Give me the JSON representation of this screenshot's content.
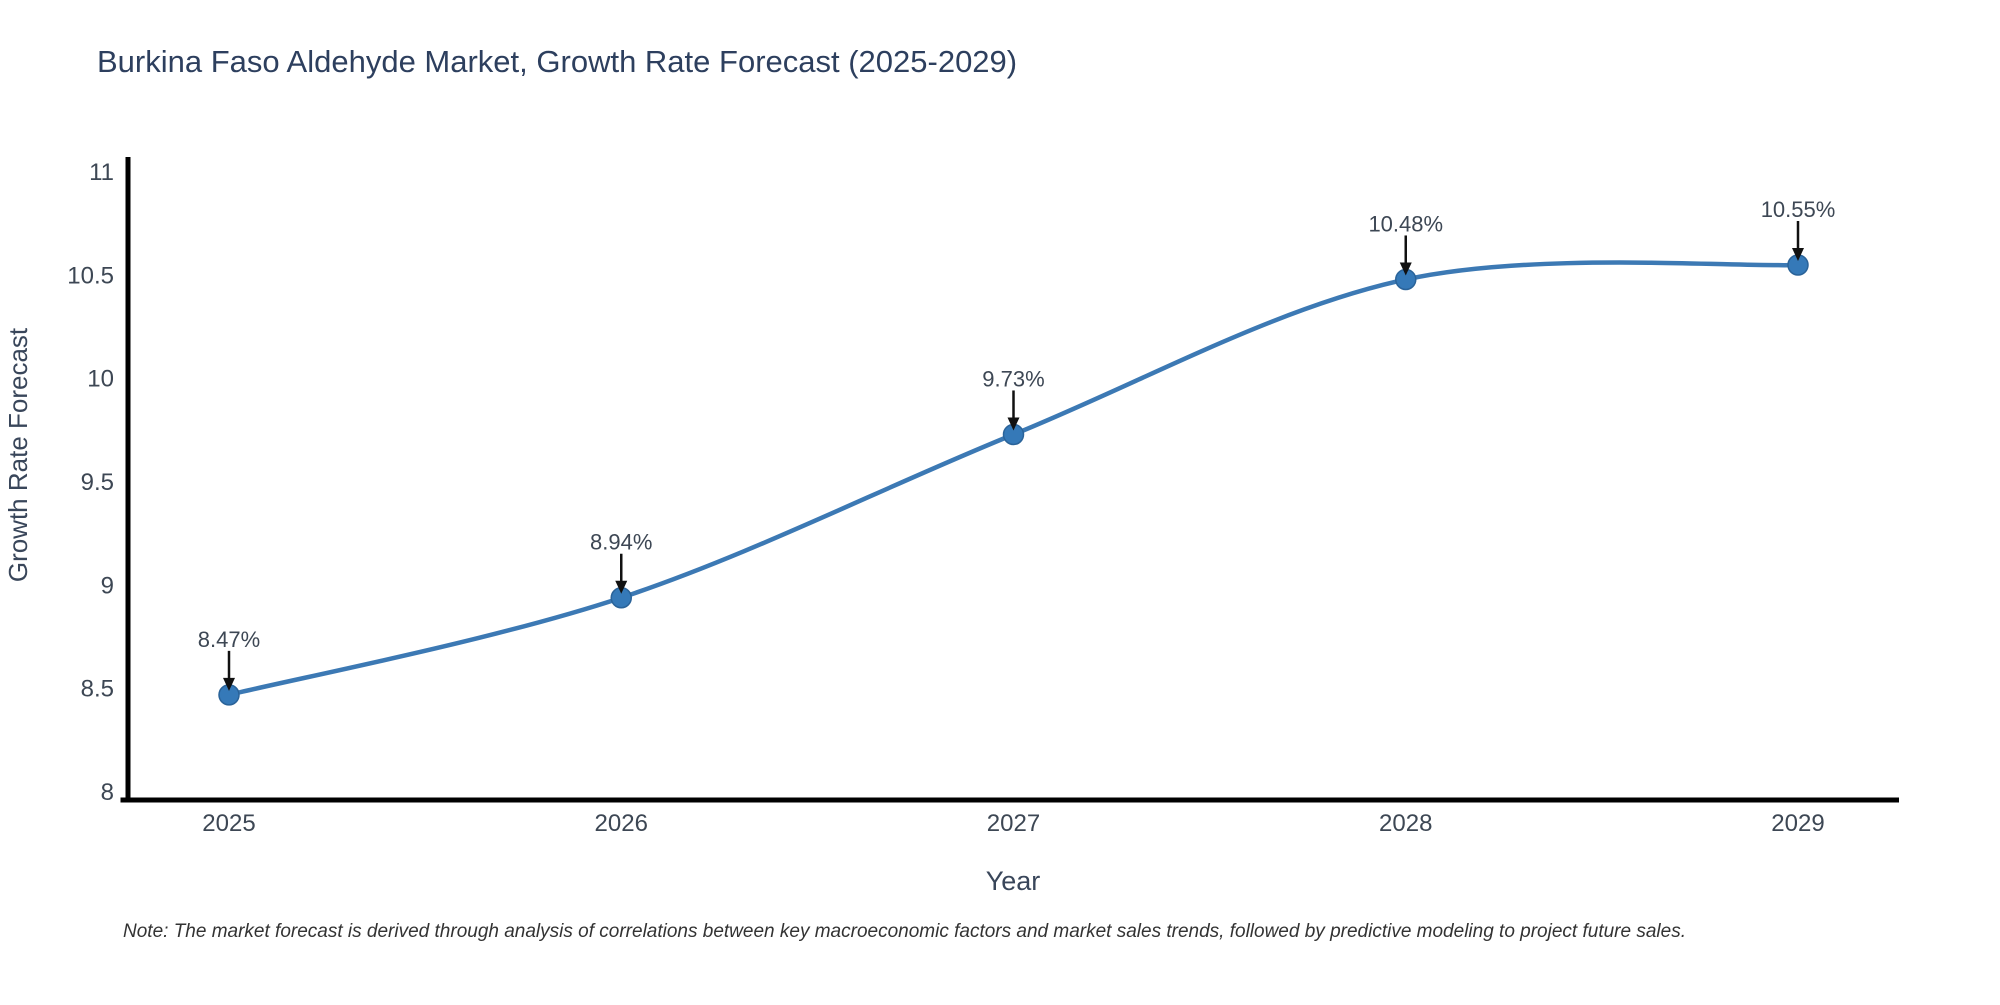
{
  "chart_data": {
    "type": "line",
    "title": "Burkina Faso Aldehyde Market, Growth Rate Forecast (2025-2029)",
    "xlabel": "Year",
    "ylabel": "Growth Rate Forecast",
    "x": [
      2025,
      2026,
      2027,
      2028,
      2029
    ],
    "series": [
      {
        "name": "Growth Rate Forecast",
        "values": [
          8.47,
          8.94,
          9.73,
          10.48,
          10.55
        ]
      }
    ],
    "point_labels": [
      "8.47%",
      "8.94%",
      "9.73%",
      "10.48%",
      "10.55%"
    ],
    "xticks": [
      "2025",
      "2026",
      "2027",
      "2028",
      "2029"
    ],
    "yticks": [
      "8",
      "8.5",
      "9",
      "9.5",
      "10",
      "10.5",
      "11"
    ],
    "ylim": [
      8,
      11
    ],
    "grid": false,
    "legend": false,
    "colors": {
      "line": "#3c79b4",
      "marker_fill": "#3579b8",
      "marker_edge": "#2a6399",
      "annotation_text": "#3d4754",
      "arrow": "#111111",
      "axis_spine": "#000000",
      "tick_label": "#3d4754",
      "title": "#2d3f5e",
      "axis_title": "#39465a",
      "note": "#333333"
    }
  },
  "footer": {
    "note": "Note: The market forecast is derived through analysis of correlations between key macroeconomic factors and market sales trends, followed by predictive modeling to project future sales."
  }
}
